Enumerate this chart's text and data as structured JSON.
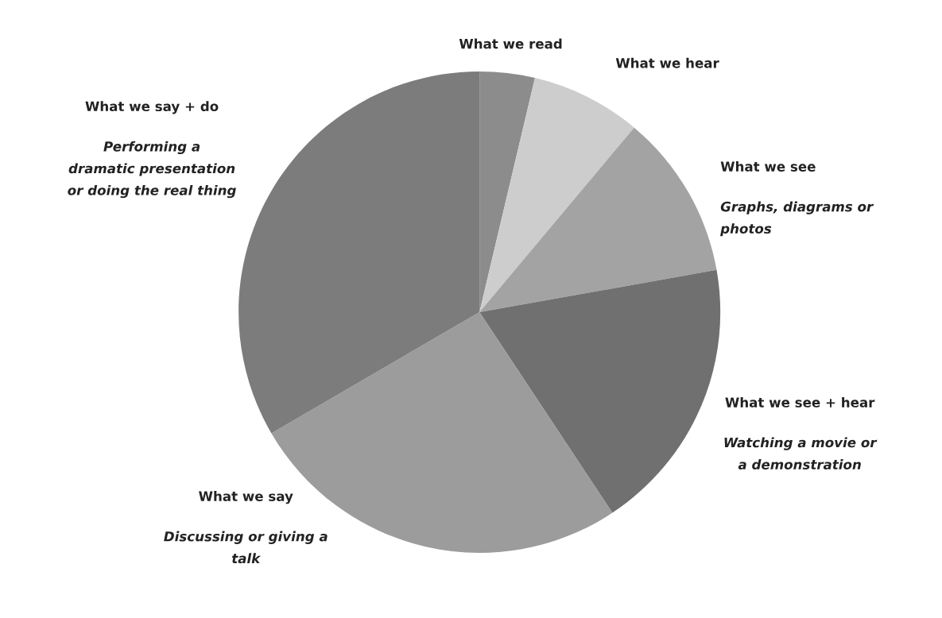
{
  "chart_data": {
    "type": "pie",
    "categories": [
      "What we read",
      "What we hear",
      "What we see",
      "What we see + hear",
      "What we say",
      "What we say + do"
    ],
    "values": [
      3.7,
      7.4,
      11.1,
      18.5,
      25.9,
      33.4
    ],
    "colors": [
      "#8c8c8c",
      "#cdcdcd",
      "#a3a3a3",
      "#707070",
      "#9c9c9c",
      "#7c7c7c"
    ],
    "annotations": [
      {
        "text": "Graphs, diagrams or\nphotos",
        "x": "What we see"
      },
      {
        "text": "Watching a movie or\na demonstration",
        "x": "What we see + hear"
      },
      {
        "text": "Discussing or giving a\ntalk",
        "x": "What we say"
      },
      {
        "text": "Performing a\ndramatic presentation\nor doing the real thing",
        "x": "What we say + do"
      }
    ],
    "legend": false
  }
}
